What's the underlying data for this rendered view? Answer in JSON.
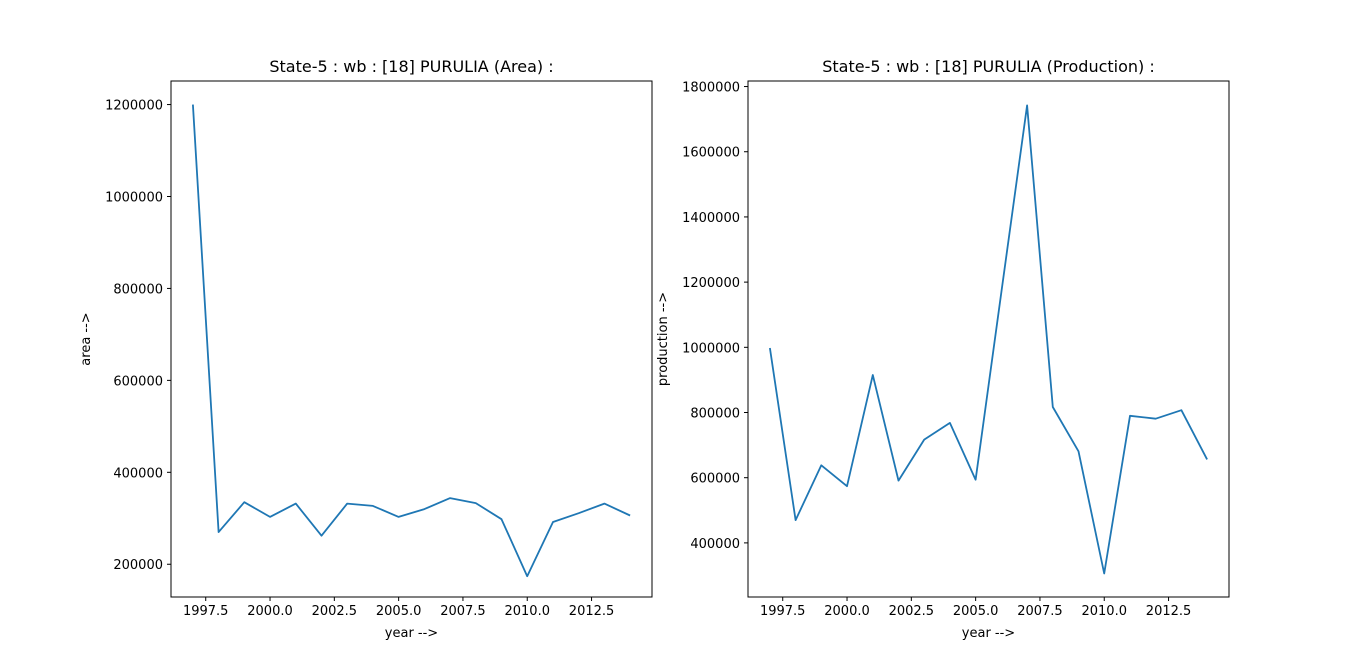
{
  "chart_data": [
    {
      "type": "line",
      "title": "State-5 : wb : [18] PURULIA (Area) :",
      "xlabel": "year -->",
      "ylabel": "area -->",
      "xlim": [
        1996.15,
        2014.85
      ],
      "ylim": [
        128750,
        1251250
      ],
      "x_ticks": [
        1997.5,
        2000.0,
        2002.5,
        2005.0,
        2007.5,
        2010.0,
        2012.5
      ],
      "x_tick_labels": [
        "1997.5",
        "2000.0",
        "2002.5",
        "2005.0",
        "2007.5",
        "2010.0",
        "2012.5"
      ],
      "y_ticks": [
        200000,
        400000,
        600000,
        800000,
        1000000,
        1200000
      ],
      "y_tick_labels": [
        "200000",
        "400000",
        "600000",
        "800000",
        "1000000",
        "1200000"
      ],
      "grid": false,
      "color": "#1f77b4",
      "x": [
        1997,
        1998,
        1999,
        2000,
        2001,
        2002,
        2003,
        2004,
        2005,
        2006,
        2007,
        2008,
        2009,
        2010,
        2011,
        2012,
        2013,
        2014
      ],
      "values": [
        1200000,
        270000,
        335000,
        303000,
        332000,
        262000,
        332000,
        327000,
        303000,
        320000,
        344000,
        333000,
        298000,
        174000,
        292000,
        311000,
        332000,
        306000
      ]
    },
    {
      "type": "line",
      "title": "State-5 : wb : [18] PURULIA (Production) :",
      "xlabel": "year -->",
      "ylabel": "production -->",
      "xlim": [
        1996.15,
        2014.85
      ],
      "ylim": [
        234000,
        1817000
      ],
      "x_ticks": [
        1997.5,
        2000.0,
        2002.5,
        2005.0,
        2007.5,
        2010.0,
        2012.5
      ],
      "x_tick_labels": [
        "1997.5",
        "2000.0",
        "2002.5",
        "2005.0",
        "2007.5",
        "2010.0",
        "2012.5"
      ],
      "y_ticks": [
        400000,
        600000,
        800000,
        1000000,
        1200000,
        1400000,
        1600000,
        1800000
      ],
      "y_tick_labels": [
        "400000",
        "600000",
        "800000",
        "1000000",
        "1200000",
        "1400000",
        "1600000",
        "1800000"
      ],
      "grid": false,
      "color": "#1f77b4",
      "x": [
        1997,
        1998,
        1999,
        2000,
        2001,
        2002,
        2003,
        2004,
        2005,
        2006,
        2007,
        2008,
        2009,
        2010,
        2011,
        2012,
        2013,
        2014
      ],
      "values": [
        998000,
        470000,
        638000,
        574000,
        915000,
        591000,
        717000,
        768000,
        594000,
        1170000,
        1742000,
        817000,
        681000,
        306000,
        790000,
        781000,
        807000,
        656000
      ]
    }
  ]
}
